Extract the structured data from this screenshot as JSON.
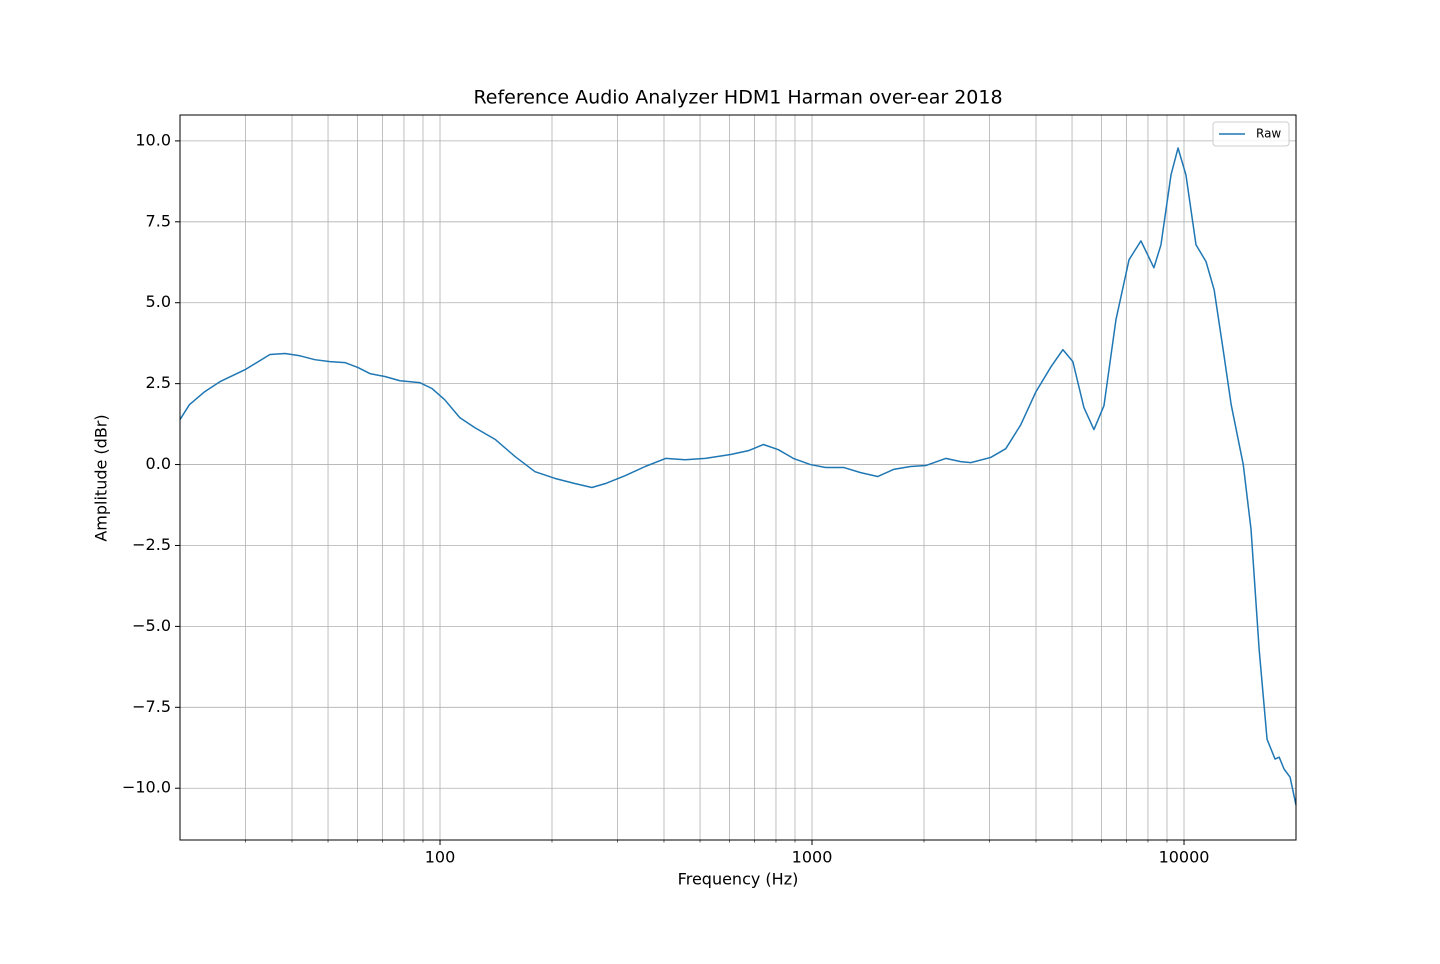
{
  "chart_data": {
    "type": "line",
    "title": "Reference Audio Analyzer HDM1 Harman over-ear 2018",
    "xlabel": "Frequency (Hz)",
    "ylabel": "Amplitude (dBr)",
    "xscale": "log",
    "grid": true,
    "legend": "upper right",
    "xlim": [
      20,
      20000
    ],
    "ylim": [
      -11.6,
      10.8
    ],
    "xticks": [
      100,
      1000,
      10000
    ],
    "x_minor_ticks": [
      30,
      40,
      50,
      60,
      70,
      80,
      90,
      200,
      300,
      400,
      500,
      600,
      700,
      800,
      900,
      2000,
      3000,
      4000,
      5000,
      6000,
      7000,
      8000,
      9000
    ],
    "yticks": [
      {
        "value": 10,
        "label": "10.0"
      },
      7.5,
      {
        "value": 5,
        "label": "5.0"
      },
      2.5,
      {
        "value": 0,
        "label": "0.0"
      },
      {
        "value": -2.5,
        "label": "−2.5"
      },
      {
        "value": -5,
        "label": "−5.0"
      },
      {
        "value": -7.5,
        "label": "−7.5"
      },
      {
        "value": -10,
        "label": "−10.0"
      }
    ],
    "x": [
      20,
      21.2,
      23.3,
      25.6,
      29.9,
      34.9,
      38.3,
      42.0,
      46.1,
      50.6,
      55.5,
      60.1,
      64.8,
      71.1,
      78.0,
      88.3,
      95.1,
      103,
      113,
      124,
      141,
      159,
      180,
      204,
      231,
      256,
      278,
      315,
      356,
      404,
      456,
      517,
      604,
      675,
      740,
      812,
      891,
      990,
      1087,
      1216,
      1351,
      1501,
      1657,
      1841,
      2022,
      2288,
      2510,
      2672,
      3022,
      3318,
      3641,
      3999,
      4389,
      4724,
      5026,
      5382,
      5726,
      6093,
      6563,
      7116,
      7660,
      8300,
      8670,
      9226,
      9636,
      10120,
      10770,
      11460,
      12050,
      12740,
      13390,
      14430,
      15140,
      15920,
      16720,
      17570,
      18020,
      18580,
      19280,
      20000
    ],
    "series": [
      {
        "name": "Raw",
        "color": "#1f77b4",
        "values": [
          1.39,
          1.85,
          2.25,
          2.56,
          2.93,
          3.4,
          3.43,
          3.36,
          3.24,
          3.18,
          3.15,
          3.0,
          2.81,
          2.72,
          2.59,
          2.53,
          2.35,
          2.0,
          1.45,
          1.14,
          0.77,
          0.25,
          -0.22,
          -0.43,
          -0.59,
          -0.71,
          -0.59,
          -0.34,
          -0.06,
          0.19,
          0.15,
          0.19,
          0.31,
          0.43,
          0.62,
          0.46,
          0.19,
          0.0,
          -0.09,
          -0.09,
          -0.25,
          -0.37,
          -0.15,
          -0.06,
          -0.03,
          0.19,
          0.09,
          0.06,
          0.22,
          0.49,
          1.23,
          2.25,
          3.02,
          3.55,
          3.18,
          1.76,
          1.08,
          1.82,
          4.48,
          6.33,
          6.91,
          6.08,
          6.79,
          8.95,
          9.78,
          8.95,
          6.79,
          6.27,
          5.4,
          3.55,
          1.85,
          0.0,
          -2.0,
          -5.71,
          -8.49,
          -9.1,
          -9.04,
          -9.41,
          -9.66,
          -10.52
        ]
      }
    ]
  }
}
